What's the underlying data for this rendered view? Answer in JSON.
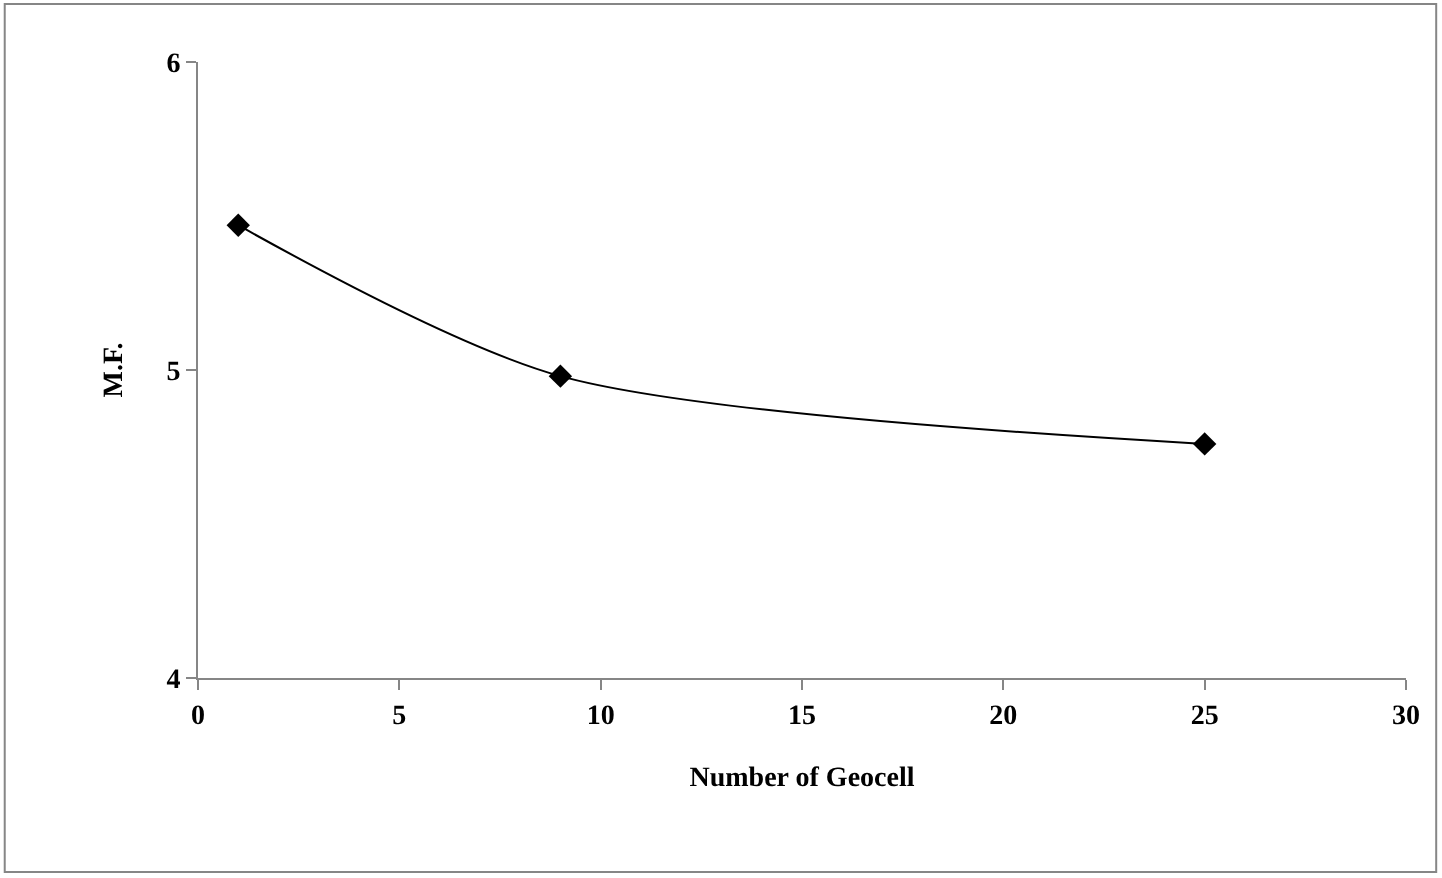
{
  "chart_data": {
    "type": "line",
    "xlabel": "Number of Geocell",
    "ylabel": "M.F.",
    "x": [
      1,
      9,
      25
    ],
    "series": [
      {
        "color": "#000000",
        "values": [
          5.47,
          4.98,
          4.76
        ]
      }
    ],
    "xlim": [
      0,
      30
    ],
    "xticks": [
      0,
      5,
      10,
      15,
      20,
      25,
      30
    ],
    "ylim": [
      4,
      6
    ],
    "yticks": [
      4,
      5,
      6
    ],
    "legend": false,
    "marker": "diamond",
    "line_style": "solid"
  }
}
